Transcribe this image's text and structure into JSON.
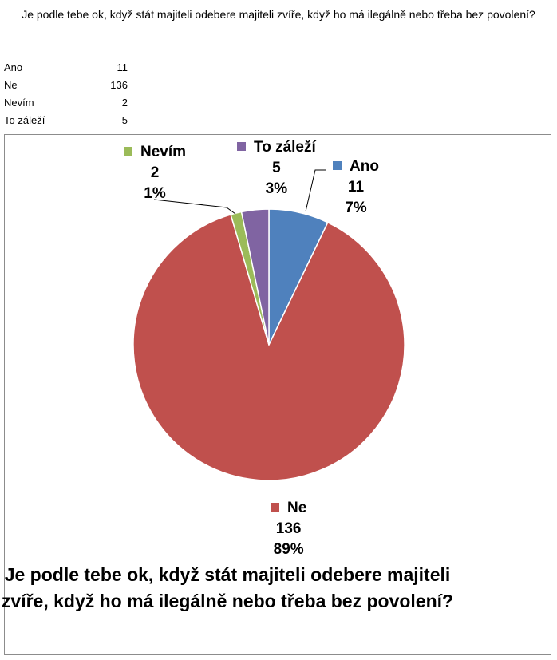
{
  "question": "Je podle tebe ok, když stát majiteli odebere majiteli zvíře, když ho má ilegálně nebo třeba bez povolení?",
  "table": [
    {
      "label": "Ano",
      "value": "11"
    },
    {
      "label": "Ne",
      "value": "136"
    },
    {
      "label": "Nevím",
      "value": "2"
    },
    {
      "label": "To záleží",
      "value": "5"
    }
  ],
  "chart_data": {
    "type": "pie",
    "title": "Je podle tebe ok, když stát majiteli odebere majiteli zvíře, když ho má ilegálně nebo třeba bez povolení?",
    "categories": [
      "Ano",
      "Ne",
      "Nevím",
      "To záleží"
    ],
    "values": [
      11,
      136,
      2,
      5
    ],
    "percent_labels": [
      "7%",
      "89%",
      "1%",
      "3%"
    ],
    "colors": [
      "#4f81bd",
      "#c0504d",
      "#9bbb59",
      "#8064a2"
    ],
    "start_angle_deg": 0,
    "direction": "clockwise",
    "legend": "none",
    "data_labels": "category, value, percent with color key"
  }
}
